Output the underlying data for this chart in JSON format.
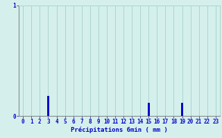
{
  "hours": [
    0,
    1,
    2,
    3,
    4,
    5,
    6,
    7,
    8,
    9,
    10,
    11,
    12,
    13,
    14,
    15,
    16,
    17,
    18,
    19,
    20,
    21,
    22,
    23
  ],
  "values": [
    0,
    0,
    0,
    0.18,
    0,
    0,
    0,
    0,
    0,
    0,
    0,
    0,
    0,
    0,
    0,
    0.12,
    0,
    0,
    0,
    0.12,
    0,
    0,
    0,
    0
  ],
  "bar_color": "#0000cc",
  "background_color": "#d5f0ec",
  "grid_color": "#aad4ce",
  "axis_color": "#0000cc",
  "xlabel": "Précipitations 6min ( mm )",
  "ylim": [
    0,
    1.0
  ],
  "xlim": [
    -0.5,
    23.5
  ],
  "yticks": [
    0,
    1
  ],
  "xticks": [
    0,
    1,
    2,
    3,
    4,
    5,
    6,
    7,
    8,
    9,
    10,
    11,
    12,
    13,
    14,
    15,
    16,
    17,
    18,
    19,
    20,
    21,
    22,
    23
  ],
  "xlabel_fontsize": 6.5,
  "tick_fontsize": 5.5,
  "bar_width": 0.25
}
